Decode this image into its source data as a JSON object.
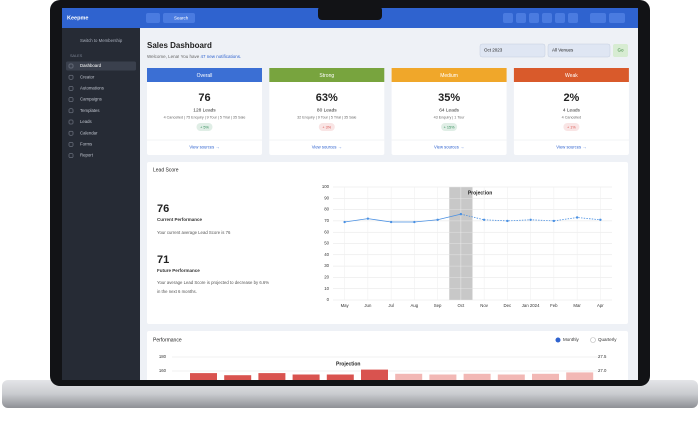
{
  "topbar": {
    "logo": "Keepme",
    "search": "Search"
  },
  "sidebar": {
    "switch": "Switch to Membership",
    "section": "SALES",
    "items": [
      "Dashboard",
      "Creator",
      "Automations",
      "Campaigns",
      "Templates",
      "Leads",
      "Calendar",
      "Forms",
      "Report"
    ]
  },
  "header": {
    "title": "Sales Dashboard",
    "welcome": "Welcome, Lena! You have",
    "notifications": "47 new notifications.",
    "month": "Oct 2023",
    "venue": "All Venues",
    "go": "Go"
  },
  "cards": [
    {
      "title": "Overall",
      "color": "#3b6fd4",
      "value": "76",
      "leads": "128 Leads",
      "detail": "4 Cancelled | 75 Enquiry | 9 Tour | 5 Trial | 35 Sale",
      "badge": "+ 5%",
      "badge_color": "#2e8b57",
      "link": "View sources →"
    },
    {
      "title": "Strong",
      "color": "#78a43e",
      "value": "63%",
      "leads": "80 Leads",
      "detail": "32 Enquiry | 9 Tour | 5 Trial | 35 Sale",
      "badge": "+ 3%",
      "badge_color": "#d9534f",
      "link": "View sources →"
    },
    {
      "title": "Medium",
      "color": "#f0a72a",
      "value": "35%",
      "leads": "64 Leads",
      "detail": "43 Enquiry | 1 Tour",
      "badge": "+ 15%",
      "badge_color": "#2e8b57",
      "link": "View sources →"
    },
    {
      "title": "Weak",
      "color": "#d95a2b",
      "value": "2%",
      "leads": "4 Leads",
      "detail": "4 Cancelled",
      "badge": "+ 1%",
      "badge_color": "#d9534f",
      "link": "View sources →"
    }
  ],
  "lead_score": {
    "title": "Lead Score",
    "current_value": "76",
    "current_label": "Current Performance",
    "current_text": "Your current average Lead Score is 76",
    "future_value": "71",
    "future_label": "Future Performance",
    "future_text": [
      "Your average Lead Score is projected to decrease by 6.6%",
      "in the next 6 months."
    ]
  },
  "chart_data": [
    {
      "type": "line",
      "annotation": "Projection",
      "categories": [
        "May",
        "Jun",
        "Jul",
        "Aug",
        "Sep",
        "Oct",
        "Nov",
        "Dec",
        "Jan 2024",
        "Feb",
        "Mar",
        "Apr"
      ],
      "series": [
        {
          "color": "#4a90e2",
          "values": [
            69,
            72,
            69,
            69,
            71,
            76,
            null,
            null,
            null,
            null,
            null,
            null
          ]
        },
        {
          "color": "#4a90e2",
          "values": [
            null,
            null,
            null,
            null,
            null,
            null,
            71,
            70,
            71,
            70,
            73,
            71
          ]
        }
      ],
      "ylim": [
        0,
        100
      ],
      "yticks": [
        0,
        10,
        20,
        30,
        40,
        50,
        60,
        70,
        80,
        90,
        100
      ],
      "grid": true
    },
    {
      "type": "bar",
      "title": "Performance",
      "options": [
        "Monthly",
        "Quarterly"
      ],
      "annotation": "Projection",
      "values": [
        157,
        154,
        157,
        155,
        155,
        162,
        156,
        155,
        156,
        155,
        156,
        158
      ],
      "colors": [
        "#d9534f",
        "#d9534f",
        "#d9534f",
        "#d9534f",
        "#d9534f",
        "#d9534f",
        "#f2b8b5",
        "#f2b8b5",
        "#f2b8b5",
        "#f2b8b5",
        "#f2b8b5",
        "#f2b8b5"
      ],
      "yticks": [
        160,
        180
      ],
      "y2ticks": [
        {
          "value": 27,
          "label": "27.0"
        },
        27.5
      ]
    }
  ]
}
